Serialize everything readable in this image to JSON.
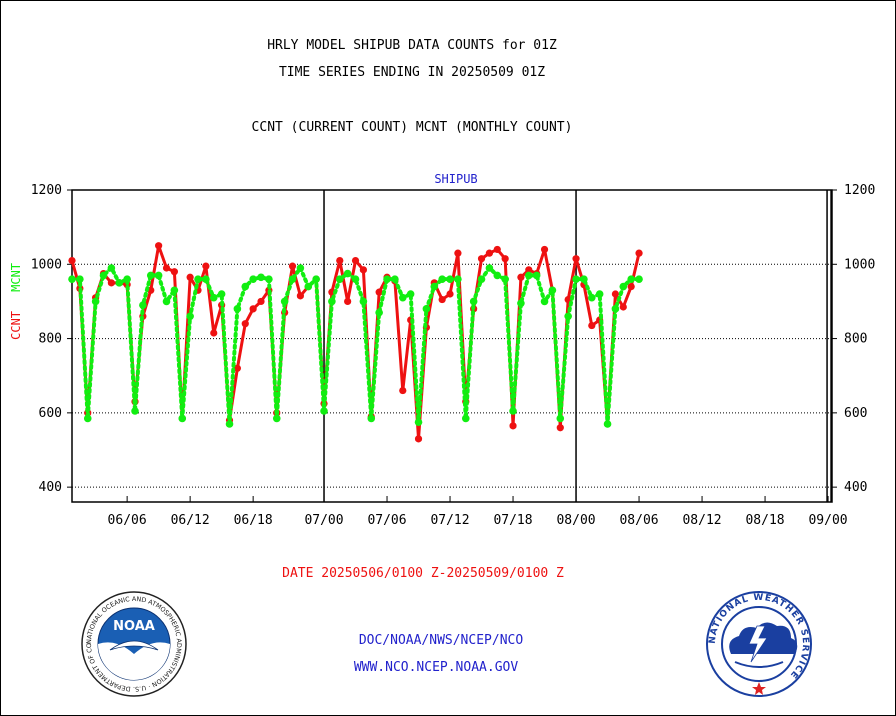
{
  "header": {
    "line1": "HRLY MODEL SHIPUB DATA COUNTS for 01Z",
    "line2": "TIME SERIES ENDING IN 20250509 01Z",
    "line3": "CCNT (CURRENT COUNT) MCNT (MONTHLY COUNT)"
  },
  "footer": {
    "date_range": "DATE 20250506/0100 Z-20250509/0100 Z",
    "org": "DOC/NOAA/NWS/NCEP/NCO",
    "url": "WWW.NCO.NCEP.NOAA.GOV"
  },
  "logos": {
    "noaa_text": "NOAA",
    "noaa_ring": "NATIONAL OCEANIC AND ATMOSPHERIC ADMINISTRATION · U.S. DEPARTMENT OF COMMERCE ·",
    "nws_ring": "NATIONAL WEATHER SERVICE"
  },
  "colors": {
    "ccnt": "#ee1111",
    "mcnt": "#11ee11",
    "date_text": "#ee1111",
    "link_text": "#2222cc",
    "panel_title": "#2222cc"
  },
  "chart_data": {
    "type": "line",
    "title": "SHIPUB",
    "ylabel_left": [
      "CCNT",
      "MCNT"
    ],
    "ylim": [
      360,
      1200
    ],
    "yticks": [
      400,
      600,
      800,
      1000,
      1200
    ],
    "x_tick_labels": [
      "06/06",
      "06/12",
      "06/18",
      "07/00",
      "07/06",
      "07/12",
      "07/18",
      "08/00",
      "08/06",
      "08/12",
      "08/18",
      "09/00"
    ],
    "x_tick_index": [
      7,
      15,
      23,
      32,
      40,
      48,
      56,
      64,
      72,
      80,
      88,
      96
    ],
    "x_major_index": [
      32,
      64
    ],
    "x_end_marker_index": 96,
    "grid": "horizontal dotted",
    "series": [
      {
        "name": "CCNT",
        "values": [
          1010,
          935,
          600,
          910,
          975,
          950,
          950,
          945,
          630,
          860,
          930,
          1050,
          990,
          980,
          585,
          965,
          930,
          995,
          815,
          890,
          580,
          720,
          840,
          880,
          900,
          930,
          600,
          870,
          995,
          915,
          940,
          960,
          625,
          925,
          1010,
          900,
          1010,
          985,
          590,
          925,
          965,
          955,
          660,
          850,
          530,
          830,
          950,
          905,
          920,
          1030,
          630,
          880,
          1015,
          1030,
          1040,
          1015,
          565,
          965,
          985,
          975,
          1040,
          930,
          560,
          905,
          1015,
          945,
          835,
          850,
          570,
          920,
          885,
          940,
          1030
        ]
      },
      {
        "name": "MCNT",
        "values": [
          960,
          960,
          585,
          900,
          970,
          990,
          950,
          960,
          605,
          890,
          970,
          970,
          900,
          930,
          585,
          860,
          960,
          960,
          910,
          920,
          570,
          880,
          940,
          960,
          965,
          960,
          585,
          900,
          960,
          990,
          940,
          960,
          605,
          900,
          960,
          975,
          960,
          900,
          585,
          870,
          960,
          960,
          910,
          920,
          575,
          880,
          940,
          960,
          960,
          960,
          585,
          900,
          960,
          990,
          970,
          960,
          605,
          895,
          970,
          970,
          900,
          930,
          585,
          860,
          960,
          960,
          910,
          920,
          570,
          880,
          940,
          960,
          960
        ]
      }
    ]
  }
}
